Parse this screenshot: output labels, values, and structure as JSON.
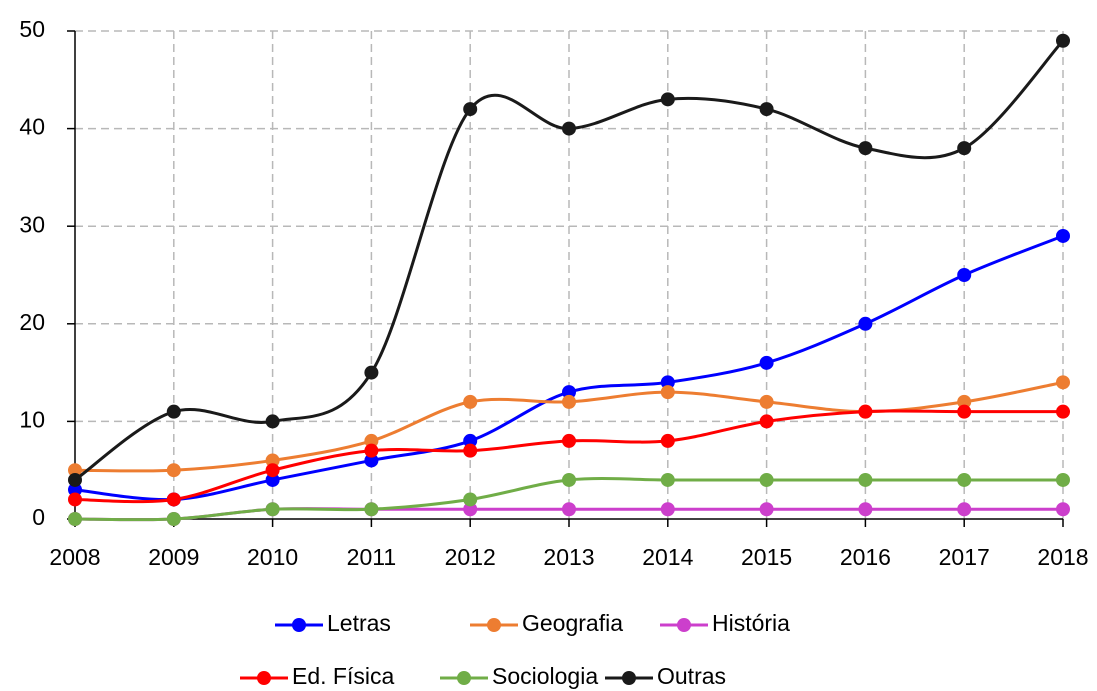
{
  "chart_data": {
    "type": "line",
    "smooth": true,
    "legend": "bottom",
    "grid": true,
    "categories": [
      "2008",
      "2009",
      "2010",
      "2011",
      "2012",
      "2013",
      "2014",
      "2015",
      "2016",
      "2017",
      "2018"
    ],
    "ylim": [
      0,
      50
    ],
    "yticks": [
      0,
      10,
      20,
      30,
      40,
      50
    ],
    "series": [
      {
        "name": "Letras",
        "color": "#0000ff",
        "values": [
          3,
          2,
          4,
          6,
          8,
          13,
          14,
          16,
          20,
          25,
          29
        ]
      },
      {
        "name": "Geografia",
        "color": "#ed7d31",
        "values": [
          5,
          5,
          6,
          8,
          12,
          12,
          13,
          12,
          11,
          12,
          14
        ]
      },
      {
        "name": "História",
        "color": "#cc3fcc",
        "values": [
          0,
          0,
          1,
          1,
          1,
          1,
          1,
          1,
          1,
          1,
          1
        ]
      },
      {
        "name": "Ed. Física",
        "color": "#ff0000",
        "values": [
          2,
          2,
          5,
          7,
          7,
          8,
          8,
          10,
          11,
          11,
          11
        ]
      },
      {
        "name": "Sociologia",
        "color": "#70ad47",
        "values": [
          0,
          0,
          1,
          1,
          2,
          4,
          4,
          4,
          4,
          4,
          4
        ]
      },
      {
        "name": "Outras",
        "color": "#1a1a1a",
        "values": [
          4,
          11,
          10,
          15,
          42,
          40,
          43,
          42,
          38,
          38,
          49
        ]
      }
    ]
  }
}
